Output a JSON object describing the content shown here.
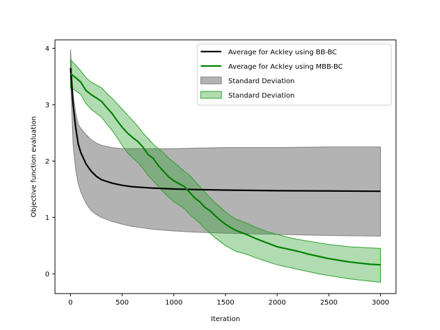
{
  "chart_data": {
    "type": "line",
    "xlabel": "Iteration",
    "ylabel": "Objective function evaluation",
    "xlim": [
      -150,
      3150
    ],
    "ylim": [
      -0.35,
      4.15
    ],
    "xticks": [
      0,
      500,
      1000,
      1500,
      2000,
      2500,
      3000
    ],
    "yticks": [
      0,
      1,
      2,
      3,
      4
    ],
    "grid": false,
    "legend_position": "top-right",
    "series": [
      {
        "name": "Average for Ackley using BB-BC",
        "color": "#000000",
        "kind": "line",
        "x": [
          0,
          25,
          50,
          75,
          100,
          150,
          200,
          250,
          300,
          400,
          500,
          600,
          800,
          1000,
          1200,
          1500,
          2000,
          2500,
          3000
        ],
        "y": [
          3.65,
          3.0,
          2.6,
          2.3,
          2.15,
          1.95,
          1.82,
          1.73,
          1.67,
          1.61,
          1.57,
          1.545,
          1.52,
          1.505,
          1.495,
          1.485,
          1.475,
          1.47,
          1.465
        ]
      },
      {
        "name": "Average for Ackley using MBB-BC",
        "color": "#008000",
        "kind": "line",
        "x": [
          0,
          50,
          100,
          150,
          200,
          250,
          300,
          350,
          400,
          450,
          500,
          550,
          600,
          650,
          700,
          750,
          800,
          850,
          900,
          950,
          1000,
          1050,
          1100,
          1150,
          1200,
          1250,
          1300,
          1350,
          1400,
          1450,
          1500,
          1550,
          1600,
          1700,
          1800,
          1900,
          2000,
          2100,
          2200,
          2300,
          2400,
          2500,
          2600,
          2700,
          2800,
          2900,
          3000
        ],
        "y": [
          3.55,
          3.48,
          3.4,
          3.25,
          3.18,
          3.12,
          3.06,
          2.95,
          2.85,
          2.72,
          2.6,
          2.5,
          2.42,
          2.35,
          2.25,
          2.12,
          2.05,
          1.92,
          1.82,
          1.72,
          1.65,
          1.6,
          1.55,
          1.45,
          1.35,
          1.28,
          1.18,
          1.12,
          1.03,
          0.95,
          0.88,
          0.82,
          0.77,
          0.7,
          0.62,
          0.55,
          0.48,
          0.44,
          0.4,
          0.35,
          0.31,
          0.27,
          0.24,
          0.21,
          0.19,
          0.17,
          0.16
        ]
      },
      {
        "name": "Standard Deviation",
        "color": "#808080",
        "kind": "band",
        "x": [
          0,
          25,
          50,
          75,
          100,
          150,
          200,
          250,
          300,
          400,
          500,
          600,
          800,
          1000,
          1200,
          1500,
          2000,
          2500,
          3000
        ],
        "upper": [
          3.98,
          3.2,
          2.85,
          2.65,
          2.58,
          2.47,
          2.38,
          2.32,
          2.28,
          2.24,
          2.22,
          2.22,
          2.22,
          2.22,
          2.23,
          2.24,
          2.24,
          2.25,
          2.25
        ],
        "lower": [
          3.5,
          2.3,
          1.85,
          1.6,
          1.45,
          1.25,
          1.12,
          1.05,
          1.0,
          0.93,
          0.88,
          0.84,
          0.79,
          0.76,
          0.74,
          0.72,
          0.7,
          0.68,
          0.67
        ]
      },
      {
        "name": "Standard Deviation",
        "color": "#2ca02c",
        "kind": "band",
        "x": [
          0,
          50,
          100,
          150,
          200,
          250,
          300,
          350,
          400,
          450,
          500,
          550,
          600,
          650,
          700,
          750,
          800,
          850,
          900,
          950,
          1000,
          1050,
          1100,
          1150,
          1200,
          1250,
          1300,
          1350,
          1400,
          1450,
          1500,
          1550,
          1600,
          1700,
          1800,
          1900,
          2000,
          2100,
          2200,
          2300,
          2400,
          2500,
          2600,
          2700,
          2800,
          2900,
          3000
        ],
        "upper": [
          3.8,
          3.7,
          3.6,
          3.48,
          3.4,
          3.35,
          3.3,
          3.2,
          3.12,
          3.02,
          2.92,
          2.82,
          2.72,
          2.62,
          2.5,
          2.4,
          2.3,
          2.22,
          2.15,
          2.05,
          1.98,
          1.9,
          1.82,
          1.75,
          1.65,
          1.55,
          1.45,
          1.35,
          1.26,
          1.18,
          1.1,
          1.03,
          0.97,
          0.9,
          0.82,
          0.75,
          0.7,
          0.65,
          0.61,
          0.58,
          0.55,
          0.52,
          0.5,
          0.48,
          0.47,
          0.46,
          0.45
        ],
        "lower": [
          3.3,
          3.25,
          3.18,
          3.02,
          2.92,
          2.85,
          2.78,
          2.66,
          2.55,
          2.42,
          2.28,
          2.15,
          2.06,
          1.98,
          1.87,
          1.75,
          1.65,
          1.55,
          1.45,
          1.36,
          1.28,
          1.22,
          1.16,
          1.06,
          0.98,
          0.9,
          0.8,
          0.72,
          0.64,
          0.57,
          0.5,
          0.45,
          0.4,
          0.35,
          0.28,
          0.22,
          0.16,
          0.12,
          0.08,
          0.04,
          0.0,
          -0.03,
          -0.06,
          -0.09,
          -0.11,
          -0.13,
          -0.15
        ]
      }
    ],
    "legend": [
      {
        "label": "Average for Ackley using BB-BC",
        "kind": "line",
        "color": "#000000"
      },
      {
        "label": "Average for Ackley using MBB-BC",
        "kind": "line",
        "color": "#008000"
      },
      {
        "label": "Standard Deviation",
        "kind": "patch",
        "color": "#808080"
      },
      {
        "label": "Standard Deviation",
        "kind": "patch",
        "color": "#2ca02c"
      }
    ]
  }
}
